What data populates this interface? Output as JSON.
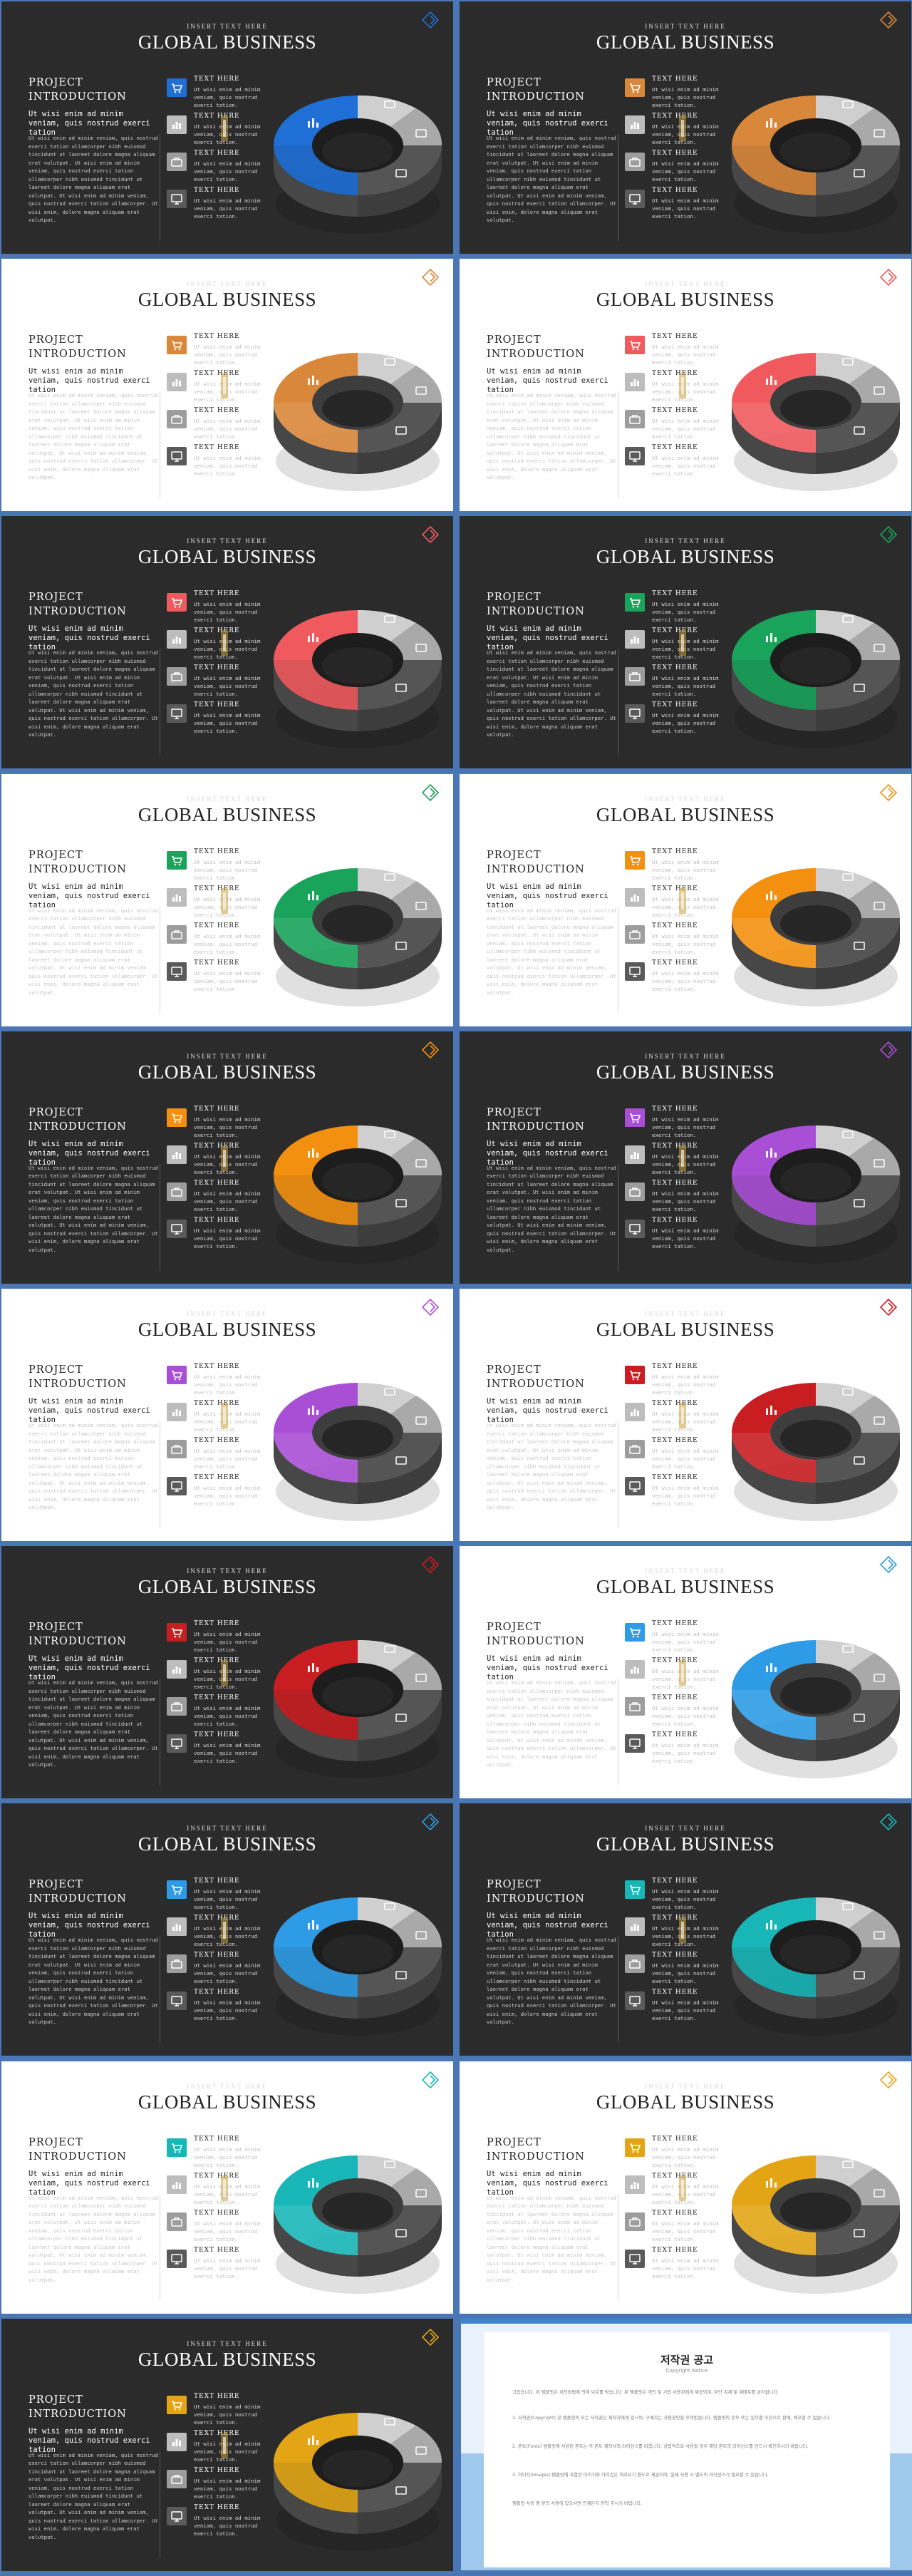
{
  "slides_common": {
    "kicker": "INSERT TEXT HERE",
    "title": "GLOBAL BUSINESS",
    "project_line1": "PROJECT",
    "project_line2": "INTRODUCTION",
    "intro_lead": "Ut wisi enim ad minim veniam, quis nostrud exerci tation",
    "intro_body": "Ut wisi enim ad minim veniam, quis nostrud exerci tation ullamcorper nibh euismod tincidunt ut laoreet dolore magna aliquam erat volutpat. Ut wisi enim ad minim veniam, quis nostrud exerci tation ullamcorper nibh euismod tincidunt ut laoreet dolore magna aliquam erat volutpat. Ut wisi enim ad minim veniam, quis nostrud exerci tation ullamcorper. Ut wisi enim, dolore magna aliquam erat volutpat.",
    "items": [
      {
        "heading": "TEXT HERE",
        "desc": "Ut wisi enim ad minim veniam, quis nostrud exerci tation.",
        "icon": "cart-icon"
      },
      {
        "heading": "TEXT HERE",
        "desc": "Ut wisi enim ad minim veniam, quis nostrud exerci tation.",
        "icon": "chart-icon"
      },
      {
        "heading": "TEXT HERE",
        "desc": "Ut wisi enim ad minim veniam, quis nostrud exerci tation.",
        "icon": "briefcase-icon"
      },
      {
        "heading": "TEXT HERE",
        "desc": "Ut wisi enim ad minim veniam, quis nostrud exerci tation.",
        "icon": "monitor-icon"
      }
    ]
  },
  "slides": [
    {
      "theme": "dark",
      "accent": "#1f6fd6"
    },
    {
      "theme": "dark",
      "accent": "#d9873a"
    },
    {
      "theme": "light",
      "accent": "#d9873a"
    },
    {
      "theme": "light",
      "accent": "#f05a5e"
    },
    {
      "theme": "dark",
      "accent": "#f05a5e"
    },
    {
      "theme": "dark",
      "accent": "#1aa35a"
    },
    {
      "theme": "light",
      "accent": "#1aa35a"
    },
    {
      "theme": "light",
      "accent": "#f4900f"
    },
    {
      "theme": "dark",
      "accent": "#f4900f"
    },
    {
      "theme": "dark",
      "accent": "#a94fd6"
    },
    {
      "theme": "light",
      "accent": "#a94fd6"
    },
    {
      "theme": "light",
      "accent": "#c81e22"
    },
    {
      "theme": "dark",
      "accent": "#c81e22"
    },
    {
      "theme": "light",
      "accent": "#2e9be6"
    },
    {
      "theme": "dark",
      "accent": "#2e9be6"
    },
    {
      "theme": "dark",
      "accent": "#19b6b8"
    },
    {
      "theme": "light",
      "accent": "#19b6b8"
    },
    {
      "theme": "light",
      "accent": "#e3a516"
    },
    {
      "theme": "dark",
      "accent": "#e3a516"
    }
  ],
  "notice": {
    "title": "저작권 공고",
    "subtitle": "Copyright Notice",
    "paragraphs": [
      "고맙습니다. 본 템플릿은 저작권법에 의해 보호를 받습니다. 본 템플릿은 개인 및 기업 사용자에게 제공되며, 무단 복제 및 재배포를 금지합니다.",
      "1. 저작권(Copyright) 본 템플릿의 모든 저작권은 제작자에게 있으며, 구매자는 사용권만을 부여받습니다. 템플릿의 전부 또는 일부를 무단으로 판매, 배포할 수 없습니다.",
      "2. 폰트(Fonts) 템플릿에 사용된 폰트는 각 폰트 제작사의 라이선스를 따릅니다. 상업적으로 사용할 경우 해당 폰트의 라이선스를 반드시 확인하시기 바랍니다.",
      "3. 이미지(Images) 템플릿에 포함된 이미지와 아이콘은 미리보기 용도로 제공되며, 실제 사용 시 별도의 라이선스가 필요할 수 있습니다.",
      "템플릿 사용 중 문의 사항이 있으시면 언제든지 연락 주시기 바랍니다."
    ]
  }
}
